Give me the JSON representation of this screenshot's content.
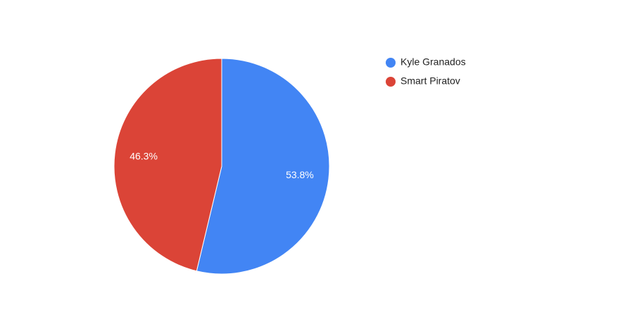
{
  "chart_data": {
    "type": "pie",
    "categories": [
      "Kyle Granados",
      "Smart Piratov"
    ],
    "values": [
      53.8,
      46.3
    ],
    "value_labels": [
      "53.8%",
      "46.3%"
    ],
    "colors": [
      "#4285f4",
      "#db4437"
    ],
    "legend": "right"
  }
}
